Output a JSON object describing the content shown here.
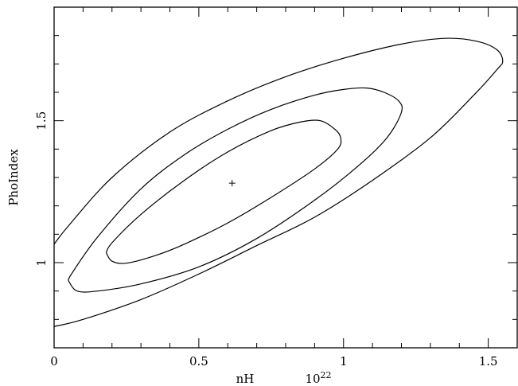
{
  "chart_data": {
    "type": "contour",
    "xlabel": "nH",
    "xunit": "10^22",
    "ylabel": "PhoIndex",
    "xlim": [
      0,
      1.6
    ],
    "ylim": [
      0.7,
      1.9
    ],
    "x_ticks": [
      0,
      0.5,
      1,
      1.5
    ],
    "x_tick_labels": [
      "0",
      "0.5",
      "1",
      "1.5"
    ],
    "y_ticks": [
      1,
      1.5
    ],
    "y_tick_labels": [
      "1",
      "1.5"
    ],
    "best_fit": {
      "x": 0.615,
      "y": 1.28,
      "marker": "+"
    },
    "contours": [
      {
        "name": "inner",
        "points": [
          [
            0.18,
            1.035
          ],
          [
            0.2,
            1.07
          ],
          [
            0.3,
            1.17
          ],
          [
            0.45,
            1.29
          ],
          [
            0.6,
            1.39
          ],
          [
            0.75,
            1.465
          ],
          [
            0.85,
            1.495
          ],
          [
            0.92,
            1.5
          ],
          [
            0.97,
            1.47
          ],
          [
            0.99,
            1.44
          ],
          [
            0.98,
            1.4
          ],
          [
            0.9,
            1.33
          ],
          [
            0.75,
            1.23
          ],
          [
            0.6,
            1.14
          ],
          [
            0.45,
            1.065
          ],
          [
            0.35,
            1.025
          ],
          [
            0.25,
            0.998
          ],
          [
            0.2,
            1.005
          ],
          [
            0.18,
            1.035
          ]
        ]
      },
      {
        "name": "middle",
        "points": [
          [
            0.05,
            0.935
          ],
          [
            0.06,
            0.96
          ],
          [
            0.15,
            1.09
          ],
          [
            0.3,
            1.26
          ],
          [
            0.45,
            1.38
          ],
          [
            0.6,
            1.47
          ],
          [
            0.75,
            1.54
          ],
          [
            0.9,
            1.59
          ],
          [
            1.0,
            1.61
          ],
          [
            1.08,
            1.615
          ],
          [
            1.14,
            1.6
          ],
          [
            1.19,
            1.57
          ],
          [
            1.2,
            1.53
          ],
          [
            1.15,
            1.44
          ],
          [
            1.05,
            1.34
          ],
          [
            0.9,
            1.22
          ],
          [
            0.7,
            1.085
          ],
          [
            0.5,
            0.985
          ],
          [
            0.3,
            0.925
          ],
          [
            0.15,
            0.9
          ],
          [
            0.08,
            0.9
          ],
          [
            0.05,
            0.935
          ]
        ]
      },
      {
        "name": "outer",
        "points": [
          [
            0.0,
            0.775
          ],
          [
            0.1,
            0.8
          ],
          [
            0.3,
            0.87
          ],
          [
            0.5,
            0.96
          ],
          [
            0.7,
            1.06
          ],
          [
            0.9,
            1.16
          ],
          [
            1.1,
            1.29
          ],
          [
            1.3,
            1.44
          ],
          [
            1.45,
            1.59
          ],
          [
            1.53,
            1.68
          ],
          [
            1.55,
            1.71
          ],
          [
            1.53,
            1.75
          ],
          [
            1.46,
            1.78
          ],
          [
            1.35,
            1.79
          ],
          [
            1.2,
            1.77
          ],
          [
            1.0,
            1.72
          ],
          [
            0.8,
            1.655
          ],
          [
            0.6,
            1.57
          ],
          [
            0.4,
            1.46
          ],
          [
            0.2,
            1.3
          ],
          [
            0.05,
            1.13
          ],
          [
            0.0,
            1.065
          ]
        ]
      }
    ]
  }
}
